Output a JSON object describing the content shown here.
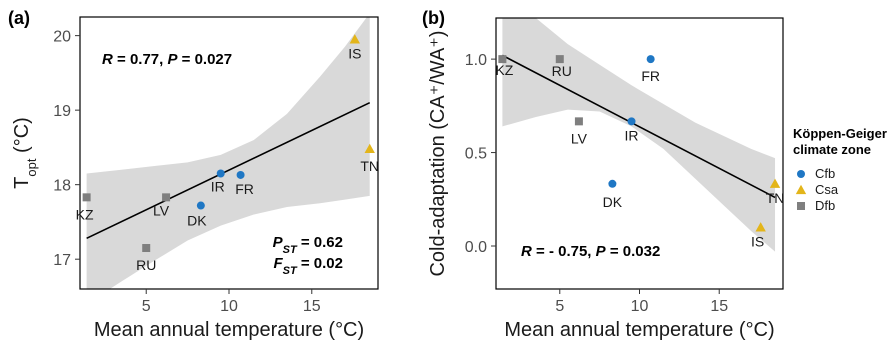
{
  "chart_data": [
    {
      "panel": "(a)",
      "type": "scatter",
      "xlabel": "Mean annual temperature (°C)",
      "ylabel": {
        "main": "T",
        "sub": "opt",
        "rest": " (°C)"
      },
      "xlim": [
        1.0,
        19.0
      ],
      "ylim": [
        16.6,
        20.25
      ],
      "xticks": [
        5,
        10,
        15
      ],
      "yticks": [
        17,
        18,
        19,
        20
      ],
      "grid": false,
      "points": [
        {
          "label": "KZ",
          "x": 1.4,
          "y": 17.83,
          "zone": "Dfb"
        },
        {
          "label": "RU",
          "x": 5.0,
          "y": 17.15,
          "zone": "Dfb"
        },
        {
          "label": "LV",
          "x": 6.2,
          "y": 17.83,
          "zone": "Dfb"
        },
        {
          "label": "DK",
          "x": 8.3,
          "y": 17.72,
          "zone": "Cfb"
        },
        {
          "label": "IR",
          "x": 9.5,
          "y": 18.15,
          "zone": "Cfb"
        },
        {
          "label": "FR",
          "x": 10.7,
          "y": 18.13,
          "zone": "Cfb"
        },
        {
          "label": "IS",
          "x": 17.6,
          "y": 19.95,
          "zone": "Csa"
        },
        {
          "label": "TN",
          "x": 18.5,
          "y": 18.48,
          "zone": "Csa"
        }
      ],
      "fit": {
        "x": [
          1.4,
          18.5
        ],
        "y": [
          17.28,
          19.1
        ]
      },
      "ribbon": {
        "x": [
          1.4,
          3.5,
          5.5,
          7.5,
          9.5,
          11.5,
          13.5,
          15.5,
          17.0,
          18.5
        ],
        "upper": [
          18.15,
          18.2,
          18.25,
          18.3,
          18.4,
          18.6,
          18.95,
          19.45,
          19.85,
          20.3
        ],
        "lower": [
          16.4,
          16.7,
          16.98,
          17.25,
          17.45,
          17.6,
          17.7,
          17.75,
          17.8,
          17.85
        ]
      },
      "annotations": [
        {
          "parts": [
            {
              "t": "R",
              "i": true
            },
            {
              "t": " = 0.77, ",
              "i": false
            },
            {
              "t": "P",
              "i": true
            },
            {
              "t": " = 0.027",
              "i": false
            }
          ]
        },
        {
          "parts": [
            {
              "t": "P",
              "i": true
            },
            {
              "t": "ST",
              "i": true,
              "sub": true
            },
            {
              "t": " = 0.62",
              "i": false
            }
          ]
        },
        {
          "parts": [
            {
              "t": "F",
              "i": true
            },
            {
              "t": "ST",
              "i": true,
              "sub": true
            },
            {
              "t": " = 0.02",
              "i": false
            }
          ]
        }
      ]
    },
    {
      "panel": "(b)",
      "type": "scatter",
      "xlabel": "Mean annual temperature (°C)",
      "ylabel": {
        "text": "Cold-adaptation (CA⁺/WA⁺)"
      },
      "xlim": [
        1.0,
        19.0
      ],
      "ylim": [
        -0.23,
        1.22
      ],
      "xticks": [
        5,
        10,
        15
      ],
      "yticks": [
        0.0,
        0.5,
        1.0
      ],
      "ytick_labels": [
        "0.0",
        "0.5",
        "1.0"
      ],
      "grid": false,
      "points": [
        {
          "label": "KZ",
          "x": 1.4,
          "y": 1.0,
          "zone": "Dfb"
        },
        {
          "label": "RU",
          "x": 5.0,
          "y": 1.0,
          "zone": "Dfb"
        },
        {
          "label": "FR",
          "x": 10.7,
          "y": 1.0,
          "zone": "Cfb"
        },
        {
          "label": "LV",
          "x": 6.2,
          "y": 0.667,
          "zone": "Dfb"
        },
        {
          "label": "IR",
          "x": 9.5,
          "y": 0.667,
          "zone": "Cfb"
        },
        {
          "label": "DK",
          "x": 8.3,
          "y": 0.333,
          "zone": "Cfb"
        },
        {
          "label": "TN",
          "x": 18.5,
          "y": 0.333,
          "zone": "Csa"
        },
        {
          "label": "IS",
          "x": 17.6,
          "y": 0.1,
          "zone": "Csa"
        }
      ],
      "fit": {
        "x": [
          1.4,
          18.5
        ],
        "y": [
          1.02,
          0.26
        ]
      },
      "ribbon": {
        "x": [
          1.4,
          3.5,
          5.5,
          7.5,
          9.5,
          11.5,
          13.5,
          15.5,
          17.0,
          18.5
        ],
        "upper": [
          1.4,
          1.22,
          1.08,
          0.97,
          0.86,
          0.76,
          0.66,
          0.58,
          0.52,
          0.47
        ],
        "lower": [
          0.64,
          0.69,
          0.73,
          0.72,
          0.64,
          0.52,
          0.36,
          0.2,
          0.08,
          -0.03
        ]
      },
      "annotations": [
        {
          "parts": [
            {
              "t": "R",
              "i": true
            },
            {
              "t": " = - 0.75, ",
              "i": false
            },
            {
              "t": "P",
              "i": true
            },
            {
              "t": " = 0.032",
              "i": false
            }
          ]
        }
      ]
    }
  ],
  "legend": {
    "title_lines": [
      "Köppen-Geiger",
      "climate zone"
    ],
    "placement": "right",
    "entries": [
      {
        "name": "Cfb",
        "shape": "circle",
        "color": "#1f77c4"
      },
      {
        "name": "Csa",
        "shape": "triangle",
        "color": "#e3b51a"
      },
      {
        "name": "Dfb",
        "shape": "square",
        "color": "#7f7f7f"
      }
    ]
  },
  "colors": {
    "ribbon": "#d9d9d9",
    "fit": "#000000",
    "frame": "#000000"
  }
}
